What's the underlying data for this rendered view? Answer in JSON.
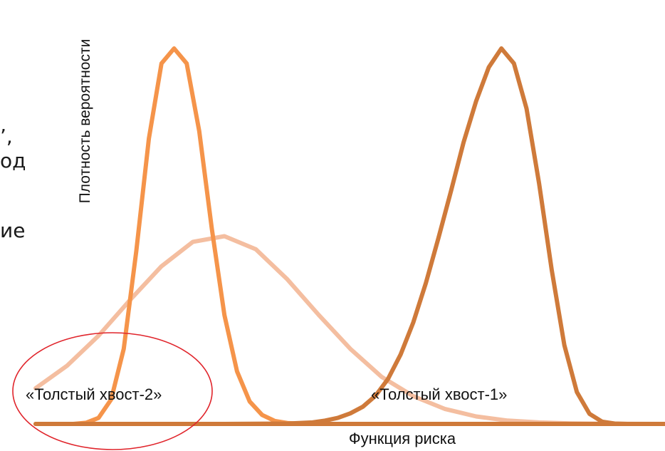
{
  "background_text": {
    "line1": "’,",
    "line2": "од",
    "line3": "ие"
  },
  "chart_data": {
    "type": "line",
    "title": "",
    "xlabel": "Функция риска",
    "ylabel": "Плотность вероятности",
    "xlim": [
      0,
      100
    ],
    "ylim": [
      0,
      100
    ],
    "grid": false,
    "legend": "none",
    "series": [
      {
        "label_key": "s1",
        "color": "#f5944a",
        "width": 6,
        "x": [
          6,
          8,
          10,
          12,
          14,
          16,
          18,
          20,
          22,
          24,
          26,
          28,
          30,
          32,
          34,
          36,
          38,
          40,
          42,
          44,
          46,
          48,
          50,
          52,
          54,
          56,
          58,
          60,
          70,
          100
        ],
        "y": [
          0,
          0.3,
          1.6,
          6.5,
          20,
          46,
          76,
          96,
          100,
          96,
          78,
          52,
          29,
          14,
          6,
          2.4,
          0.8,
          0.25,
          0.06,
          0.015,
          0,
          0,
          0,
          0,
          0,
          0,
          0,
          0,
          0,
          0
        ]
      },
      {
        "label_key": "s2",
        "color": "#f4bea0",
        "width": 6,
        "x": [
          0,
          5,
          10,
          15,
          20,
          25,
          30,
          35,
          40,
          45,
          50,
          55,
          60,
          65,
          70,
          75,
          80,
          85,
          90,
          95,
          100
        ],
        "y": [
          9.5,
          15.5,
          23.5,
          33,
          42,
          48.5,
          50,
          46.5,
          38.5,
          29,
          20,
          12.5,
          7.4,
          4,
          2,
          0.9,
          0.4,
          0.15,
          0.05,
          0.02,
          0
        ]
      },
      {
        "label_key": "s3",
        "color": "#cf7a3a",
        "width": 6,
        "x": [
          0,
          10,
          20,
          30,
          40,
          44,
          46,
          48,
          50,
          52,
          54,
          56,
          58,
          60,
          62,
          64,
          66,
          68,
          70,
          72,
          74,
          76,
          78,
          80,
          82,
          84,
          86,
          88,
          90,
          92,
          94,
          100
        ],
        "y": [
          0,
          0,
          0,
          0,
          0.1,
          0.4,
          0.9,
          1.6,
          2.8,
          4.6,
          7.5,
          12,
          18.5,
          27,
          37.5,
          49.5,
          62,
          75,
          86,
          95,
          100,
          96,
          84,
          64,
          41,
          21,
          8.5,
          2.7,
          0.6,
          0.1,
          0,
          0
        ]
      }
    ],
    "annotations": [
      {
        "text": "«Толстый хвост-2»",
        "x": 11.6,
        "y": 3.6,
        "circled": true,
        "circle_color": "#e0242b"
      },
      {
        "text": "«Толстый хвост-1»",
        "x": 56,
        "y": 3.6,
        "circled": false
      }
    ]
  }
}
